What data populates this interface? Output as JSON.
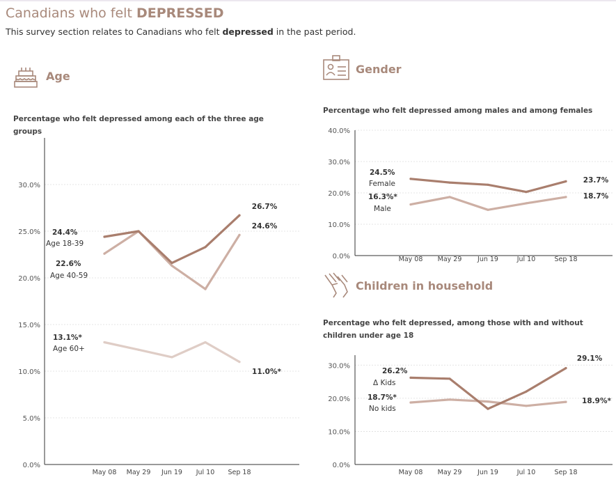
{
  "header": {
    "title_prefix": "Canadians who felt ",
    "title_emph": "DEPRESSED",
    "subtitle_prefix": "This survey section relates to Canadians who felt ",
    "subtitle_emph": "depressed",
    "subtitle_suffix": " in the past period."
  },
  "sections": {
    "age": {
      "heading": "Age",
      "icon": "birthday-cake-icon",
      "description": "Percentage who felt depressed among each of the three age groups"
    },
    "gender": {
      "heading": "Gender",
      "icon": "id-badge-icon",
      "description": "Percentage who felt depressed among males and among females"
    },
    "children": {
      "heading": "Children in household",
      "icon": "helping-hands-icon",
      "description": "Percentage who felt depressed, among those with and without children under age 18"
    }
  },
  "colors": {
    "accent": "#a8897b",
    "dark_series": "#a97e6d",
    "mid_series": "#cdafa4",
    "light_series": "#dfcdc6",
    "grid": "#dcdcdc",
    "axis": "#333333"
  },
  "chart_data": [
    {
      "id": "age",
      "type": "line",
      "x": [
        "May 08",
        "May 29",
        "Jun 19",
        "Jul 10",
        "Sep 18"
      ],
      "ylim": [
        0,
        35
      ],
      "yticks": [
        "0.0%",
        "5.0%",
        "10.0%",
        "15.0%",
        "20.0%",
        "25.0%",
        "30.0%"
      ],
      "grid": true,
      "series": [
        {
          "name": "Age 18-39",
          "values": [
            24.4,
            25.0,
            21.6,
            23.3,
            26.7
          ],
          "start_label": "24.4%",
          "end_label": "26.7%"
        },
        {
          "name": "Age 40-59",
          "values": [
            22.6,
            25.0,
            21.3,
            18.8,
            24.6
          ],
          "start_label": "22.6%",
          "end_label": "24.6%"
        },
        {
          "name": "Age 60+",
          "values": [
            13.1,
            12.3,
            11.5,
            13.1,
            11.0
          ],
          "start_label": "13.1%*",
          "end_label": "11.0%*"
        }
      ]
    },
    {
      "id": "gender",
      "type": "line",
      "x": [
        "May 08",
        "May 29",
        "Jun 19",
        "Jul 10",
        "Sep 18"
      ],
      "ylim": [
        0,
        40
      ],
      "yticks": [
        "0.0%",
        "10.0%",
        "20.0%",
        "30.0%",
        "40.0%"
      ],
      "grid": true,
      "series": [
        {
          "name": "Female",
          "values": [
            24.5,
            23.3,
            22.6,
            20.3,
            23.7
          ],
          "start_label": "24.5%",
          "end_label": "23.7%"
        },
        {
          "name": "Male",
          "values": [
            16.3,
            18.7,
            14.6,
            16.7,
            18.7
          ],
          "start_label": "16.3%*",
          "end_label": "18.7%"
        }
      ]
    },
    {
      "id": "children",
      "type": "line",
      "x": [
        "May 08",
        "May 29",
        "Jun 19",
        "Jul 10",
        "Sep 18"
      ],
      "ylim": [
        0,
        33
      ],
      "yticks": [
        "0.0%",
        "10.0%",
        "20.0%",
        "30.0%"
      ],
      "grid": true,
      "series": [
        {
          "name": "Δ Kids",
          "values": [
            26.2,
            25.9,
            16.8,
            22.0,
            29.1
          ],
          "start_label": "26.2%",
          "end_label": "29.1%"
        },
        {
          "name": "No kids",
          "values": [
            18.7,
            19.6,
            19.0,
            17.7,
            18.9
          ],
          "start_label": "18.7%*",
          "end_label": "18.9%*"
        }
      ]
    }
  ]
}
